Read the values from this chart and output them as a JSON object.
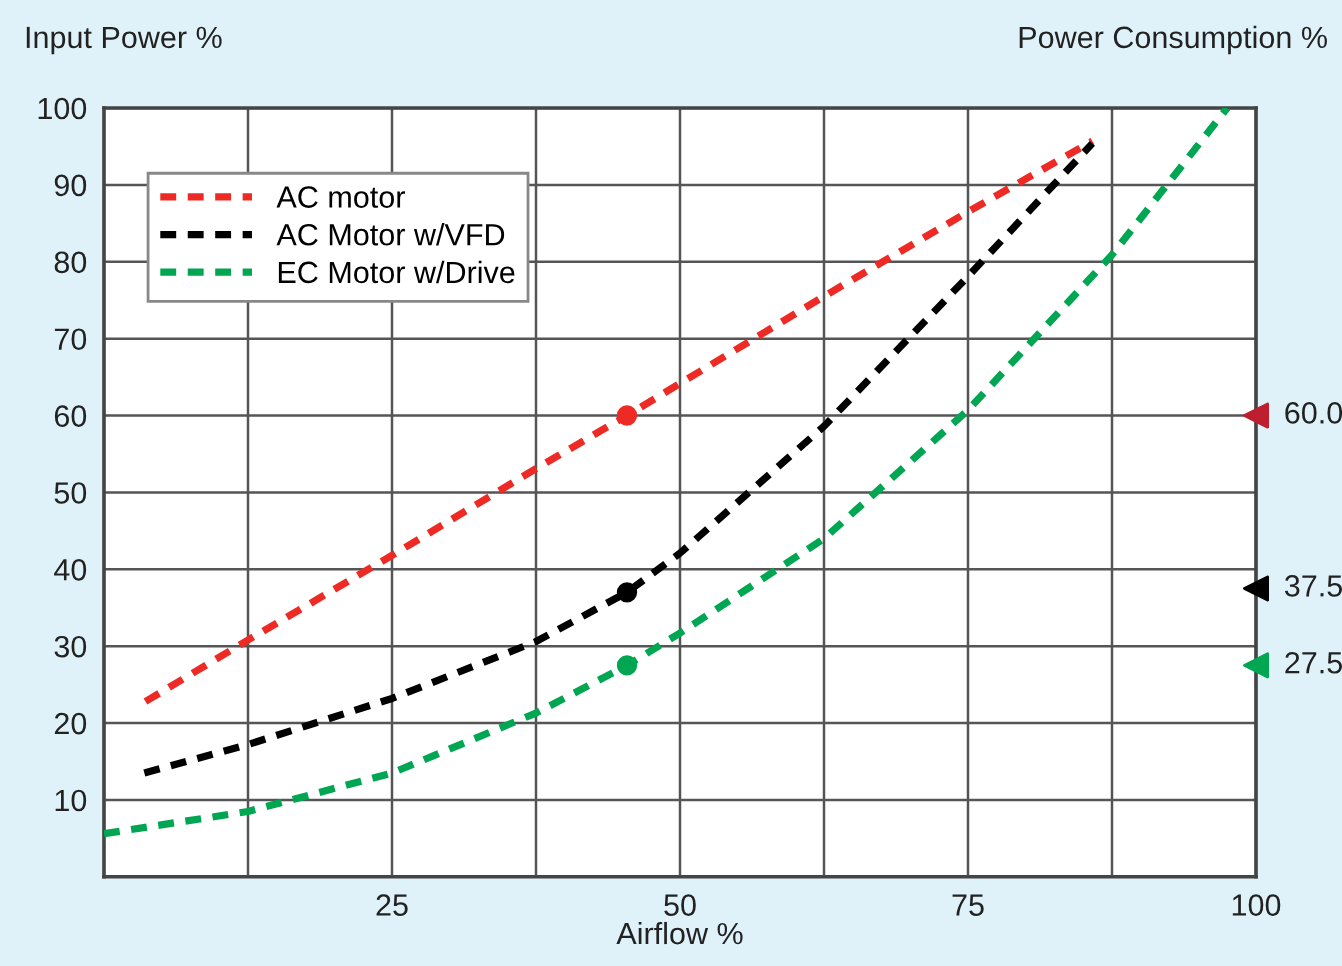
{
  "chart_data": {
    "type": "line",
    "xlabel": "Airflow %",
    "ylabel": "Input Power %",
    "y2label": "Power Consumption %",
    "xlim": [
      0,
      100
    ],
    "xticks": [
      {
        "value": 12.5,
        "label": null
      },
      25,
      {
        "value": 37.5,
        "label": null
      },
      50,
      {
        "value": 62.5,
        "label": null
      },
      75,
      {
        "value": 87.5,
        "label": null
      },
      100
    ],
    "ylim": [
      0,
      100
    ],
    "yticks": [
      10,
      20,
      30,
      40,
      50,
      60,
      70,
      80,
      90,
      100
    ],
    "grid": true,
    "legend": "top left",
    "line_style": "dashed",
    "marker": "none",
    "series": [
      {
        "name": "AC motor",
        "color": "#ee2a24",
        "x": [
          3.6,
          12.5,
          25,
          37.5,
          45.4,
          62.5,
          75,
          85.8
        ],
        "values": [
          22.8,
          30.8,
          41.8,
          53.1,
          60.0,
          75.5,
          86.5,
          95.7
        ]
      },
      {
        "name": "AC Motor w/VFD",
        "color": "#000000",
        "x": [
          3.5,
          12.5,
          25,
          37.5,
          45.4,
          50,
          62.5,
          75,
          85.8
        ],
        "values": [
          13.5,
          17.2,
          23.2,
          30.6,
          37.0,
          42.1,
          58.6,
          78.1,
          95.4
        ]
      },
      {
        "name": "EC Motor w/Drive",
        "color": "#00a651",
        "x": [
          0,
          12.5,
          25,
          37.5,
          45.4,
          50,
          62.5,
          75,
          87.5,
          97.5
        ],
        "values": [
          5.6,
          8.5,
          13.5,
          21.3,
          27.5,
          31.7,
          44.0,
          60.7,
          80.9,
          100
        ]
      },
      {
        "type": "scatter",
        "marker": "circle",
        "x": [
          45.4,
          45.4,
          45.4
        ],
        "values": [
          60.0,
          37.0,
          27.5
        ],
        "colors": [
          "#ee2a24",
          "#000000",
          "#00a651"
        ]
      },
      {
        "type": "scatter",
        "marker": "triangle",
        "x": [
          100,
          100,
          100
        ],
        "values": [
          60.0,
          37.5,
          27.5
        ],
        "colors": [
          "#be1e2d",
          "#000000",
          "#00a651"
        ],
        "value_labels": [
          "60.0",
          "37.5",
          "27.5"
        ]
      }
    ]
  }
}
